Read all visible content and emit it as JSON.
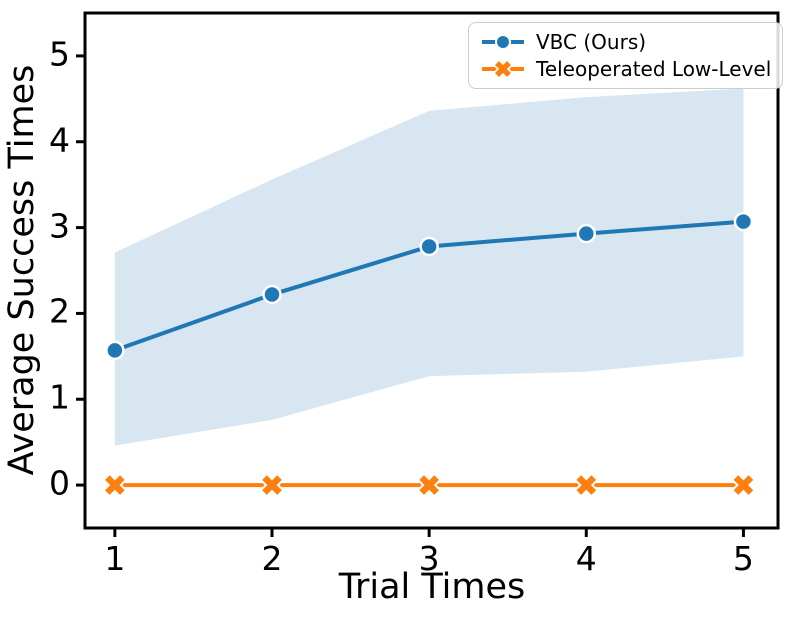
{
  "figure": {
    "background": "#ffffff",
    "spine_color": "#000000",
    "x_tick_labels": [
      "1",
      "2",
      "3",
      "4",
      "5"
    ],
    "y_tick_labels": [
      "0",
      "1",
      "2",
      "3",
      "4",
      "5"
    ],
    "xlabel": "Trial Times",
    "ylabel": "Average Success Times"
  },
  "legend": {
    "items": [
      {
        "label": "VBC (Ours)",
        "color": "#1f77b4",
        "marker": "circle"
      },
      {
        "label": "Teleoperated Low-Level",
        "color": "#ff7f0e",
        "marker": "x"
      }
    ]
  },
  "chart_data": {
    "type": "line",
    "title": "",
    "xlabel": "Trial Times",
    "ylabel": "Average Success Times",
    "x": [
      1,
      2,
      3,
      4,
      5
    ],
    "series": [
      {
        "name": "VBC (Ours)",
        "color": "#1f77b4",
        "marker": "circle",
        "values": [
          1.57,
          2.22,
          2.78,
          2.93,
          3.07
        ],
        "band_upper": [
          2.71,
          3.56,
          4.36,
          4.52,
          4.62
        ],
        "band_lower": [
          0.46,
          0.76,
          1.27,
          1.32,
          1.5
        ],
        "band_color": "#1f77b4",
        "band_opacity": 0.18
      },
      {
        "name": "Teleoperated Low-Level",
        "color": "#ff7f0e",
        "marker": "x",
        "values": [
          0,
          0,
          0,
          0,
          0
        ]
      }
    ],
    "xticks": [
      1,
      2,
      3,
      4,
      5
    ],
    "yticks": [
      0,
      1,
      2,
      3,
      4,
      5
    ],
    "xlim": [
      0.81,
      5.22
    ],
    "ylim": [
      -0.5,
      5.5
    ],
    "grid": false,
    "legend_position": "upper right"
  }
}
